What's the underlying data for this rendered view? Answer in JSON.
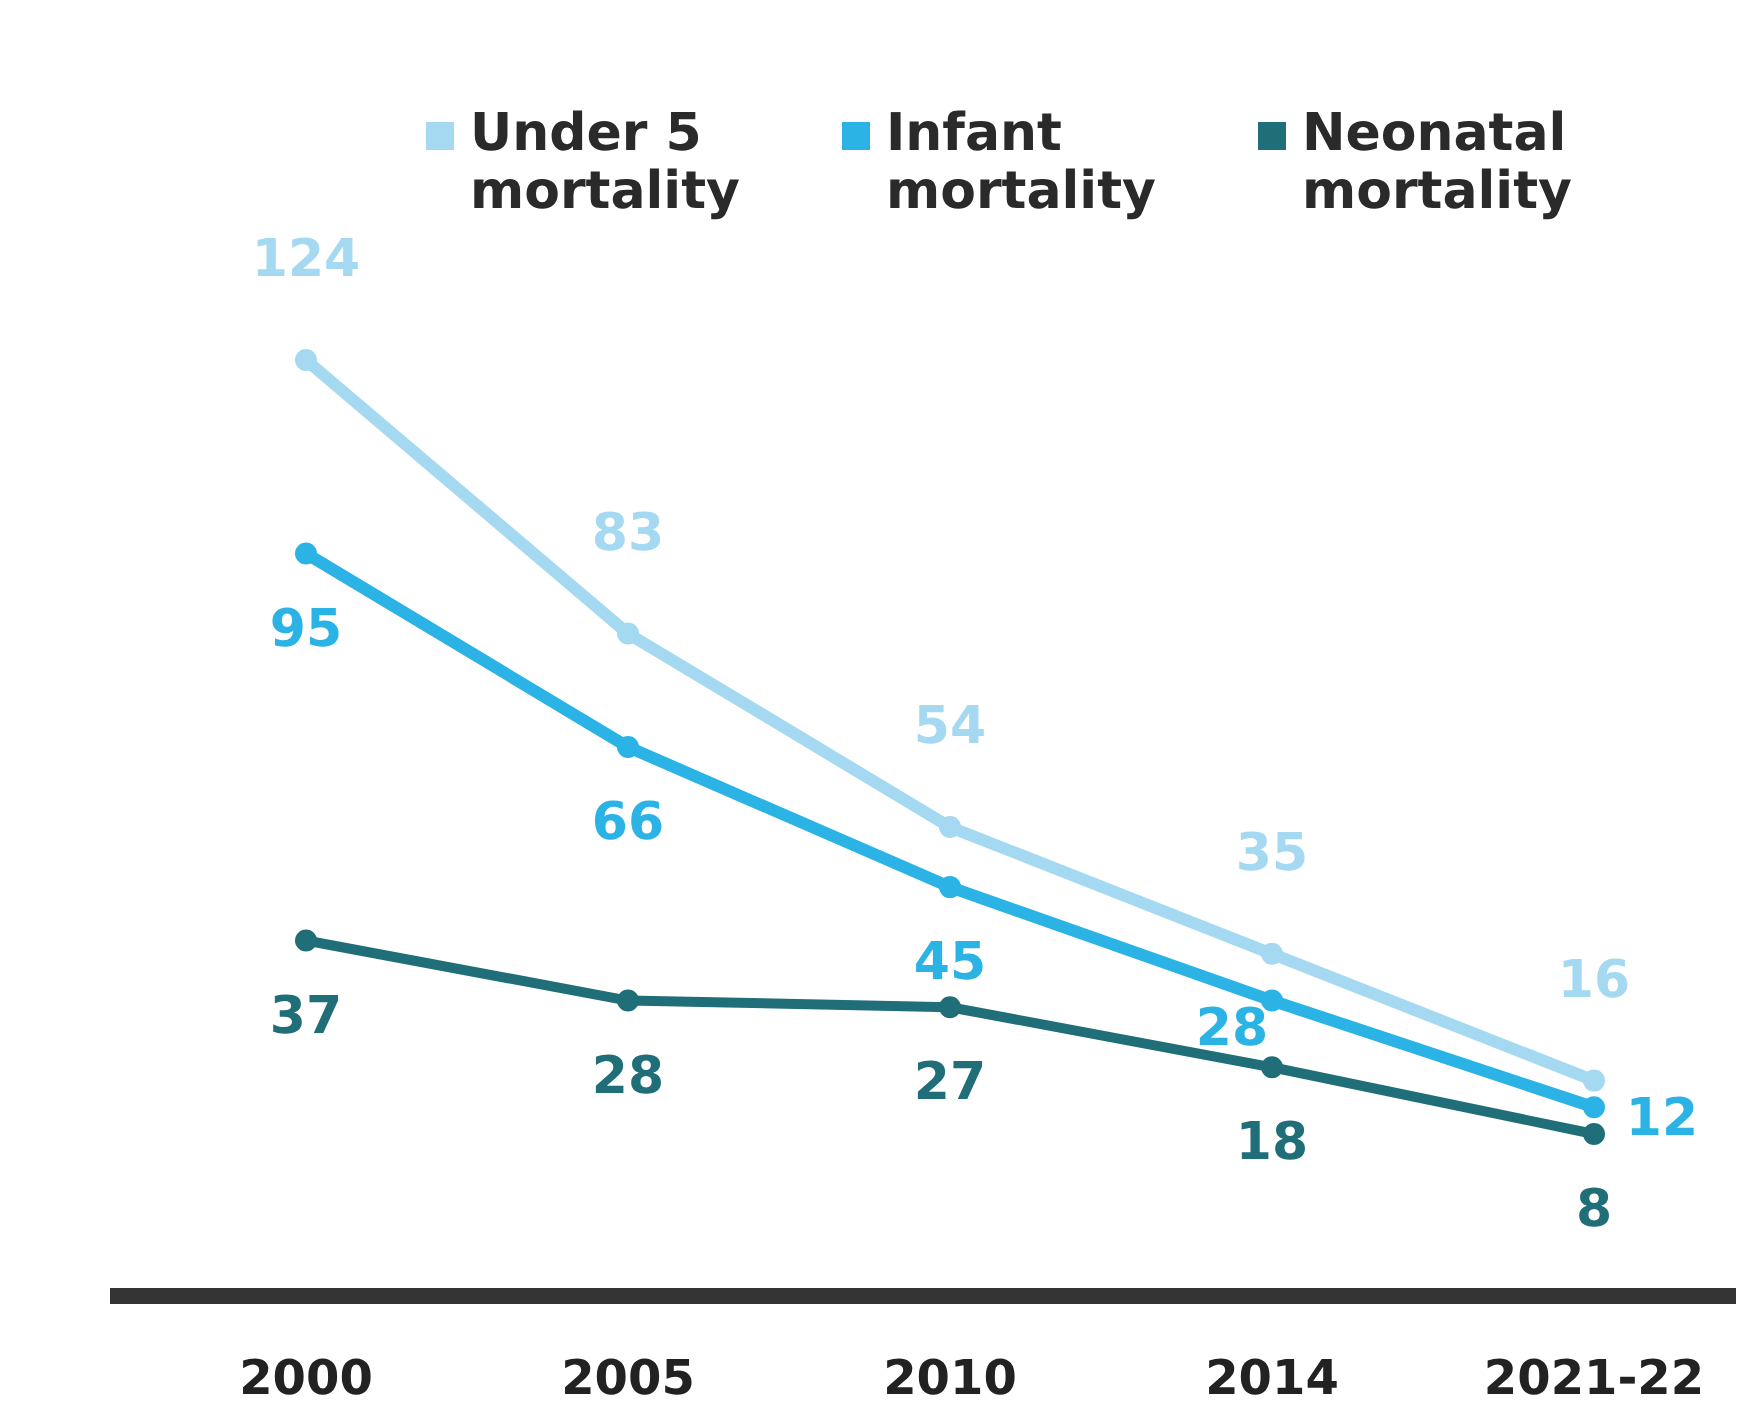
{
  "chart_data": {
    "type": "line",
    "categories": [
      "2000",
      "2005",
      "2010",
      "2014",
      "2021-22"
    ],
    "series": [
      {
        "name": "Under 5 mortality",
        "color": "#a5d9f2",
        "values": [
          124,
          83,
          54,
          35,
          16
        ]
      },
      {
        "name": "Infant mortality",
        "color": "#2bb3e6",
        "values": [
          95,
          66,
          45,
          28,
          12
        ]
      },
      {
        "name": "Neonatal mortality",
        "color": "#1f6e78",
        "values": [
          37,
          28,
          27,
          18,
          8
        ]
      }
    ],
    "data_labels": true,
    "legend": "top",
    "marker": "circle",
    "line_style": "solid",
    "tick_labels": "x"
  }
}
